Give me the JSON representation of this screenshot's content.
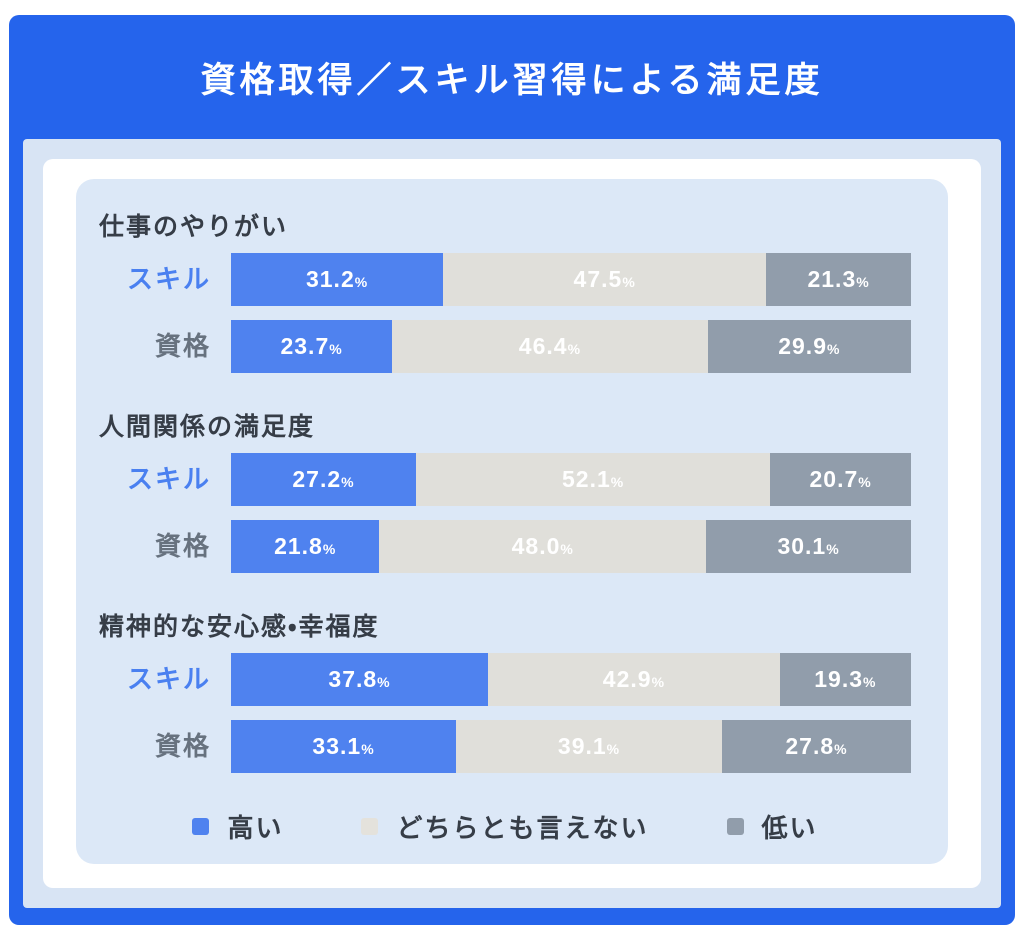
{
  "title": "資格取得／スキル習得による満足度",
  "colors": {
    "frame_blue": "#2564ec",
    "outer_padding": "#d8e4f4",
    "panel_white": "#ffffff",
    "card_bg": "#dce8f7",
    "bar_high": "#4f82ef",
    "bar_neutral": "#e0dfda",
    "bar_low": "#919dab",
    "heading_text": "#363d47",
    "skill_label": "#4a80f0",
    "shikaku_label": "#67727f",
    "value_text": "#ffffff"
  },
  "row_label_colors": {
    "スキル": "#4a80f0",
    "資格": "#67727f"
  },
  "legend": [
    {
      "label": "高い",
      "color": "#4f82ef"
    },
    {
      "label": "どちらとも言えない",
      "color": "#e4e2dc"
    },
    {
      "label": "低い",
      "color": "#919dab"
    }
  ],
  "chart_data": {
    "type": "bar",
    "orientation": "horizontal",
    "stacked": true,
    "unit": "%",
    "title": "資格取得／スキル習得による満足度",
    "series_names": [
      "高い",
      "どちらとも言えない",
      "低い"
    ],
    "series_colors": [
      "#4f82ef",
      "#e0dfda",
      "#919dab"
    ],
    "xlim": [
      0,
      100
    ],
    "grid": false,
    "legend_position": "bottom",
    "groups": [
      {
        "title": "仕事のやりがい",
        "rows": [
          {
            "label": "スキル",
            "values": [
              31.2,
              47.5,
              21.3
            ]
          },
          {
            "label": "資格",
            "values": [
              23.7,
              46.4,
              29.9
            ]
          }
        ]
      },
      {
        "title": "人間関係の満足度",
        "rows": [
          {
            "label": "スキル",
            "values": [
              27.2,
              52.1,
              20.7
            ]
          },
          {
            "label": "資格",
            "values": [
              21.8,
              48.0,
              30.1
            ]
          }
        ]
      },
      {
        "title": "精神的な安心感・幸福度",
        "rows": [
          {
            "label": "スキル",
            "values": [
              37.8,
              42.9,
              19.3
            ]
          },
          {
            "label": "資格",
            "values": [
              33.1,
              39.1,
              27.8
            ]
          }
        ]
      }
    ]
  }
}
